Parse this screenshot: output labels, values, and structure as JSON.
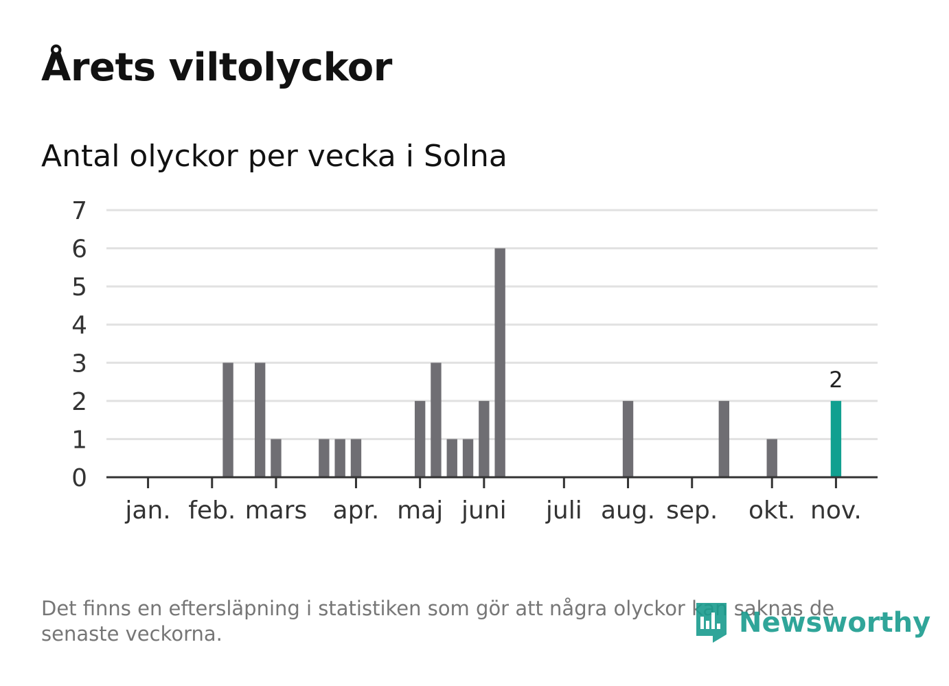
{
  "title": "Årets viltolyckor",
  "subtitle": "Antal olyckor per vecka i Solna",
  "footnote": "Det finns en eftersläpning i statistiken som gör att några olyckor kan saknas de senaste veckorna.",
  "brand": {
    "name": "Newsworthy",
    "color": "#1a9c8e"
  },
  "colors": {
    "bar": "#6f6e73",
    "highlight": "#11a090",
    "grid": "#e1e1e1",
    "axis": "#333333",
    "tick_text": "#333333"
  },
  "chart_data": {
    "type": "bar",
    "title": "Antal olyckor per vecka i Solna",
    "xlabel": "",
    "ylabel": "",
    "ylim": [
      0,
      7
    ],
    "y_ticks": [
      0,
      1,
      2,
      3,
      4,
      5,
      6,
      7
    ],
    "x_range": [
      -1.6,
      46.6
    ],
    "month_ticks": [
      {
        "label": "jan.",
        "week": 1
      },
      {
        "label": "feb.",
        "week": 5
      },
      {
        "label": "mars",
        "week": 9
      },
      {
        "label": "apr.",
        "week": 14
      },
      {
        "label": "maj",
        "week": 18
      },
      {
        "label": "juni",
        "week": 22
      },
      {
        "label": "juli",
        "week": 27
      },
      {
        "label": "aug.",
        "week": 31
      },
      {
        "label": "sep.",
        "week": 35
      },
      {
        "label": "okt.",
        "week": 40
      },
      {
        "label": "nov.",
        "week": 44
      }
    ],
    "bars": [
      {
        "week": 6,
        "value": 3
      },
      {
        "week": 8,
        "value": 3
      },
      {
        "week": 9,
        "value": 1
      },
      {
        "week": 12,
        "value": 1
      },
      {
        "week": 13,
        "value": 1
      },
      {
        "week": 14,
        "value": 1
      },
      {
        "week": 18,
        "value": 2
      },
      {
        "week": 19,
        "value": 3
      },
      {
        "week": 20,
        "value": 1
      },
      {
        "week": 21,
        "value": 1
      },
      {
        "week": 22,
        "value": 2
      },
      {
        "week": 23,
        "value": 6
      },
      {
        "week": 31,
        "value": 2
      },
      {
        "week": 37,
        "value": 2
      },
      {
        "week": 40,
        "value": 1
      },
      {
        "week": 44,
        "value": 2,
        "highlight": true,
        "label": "2"
      }
    ]
  }
}
